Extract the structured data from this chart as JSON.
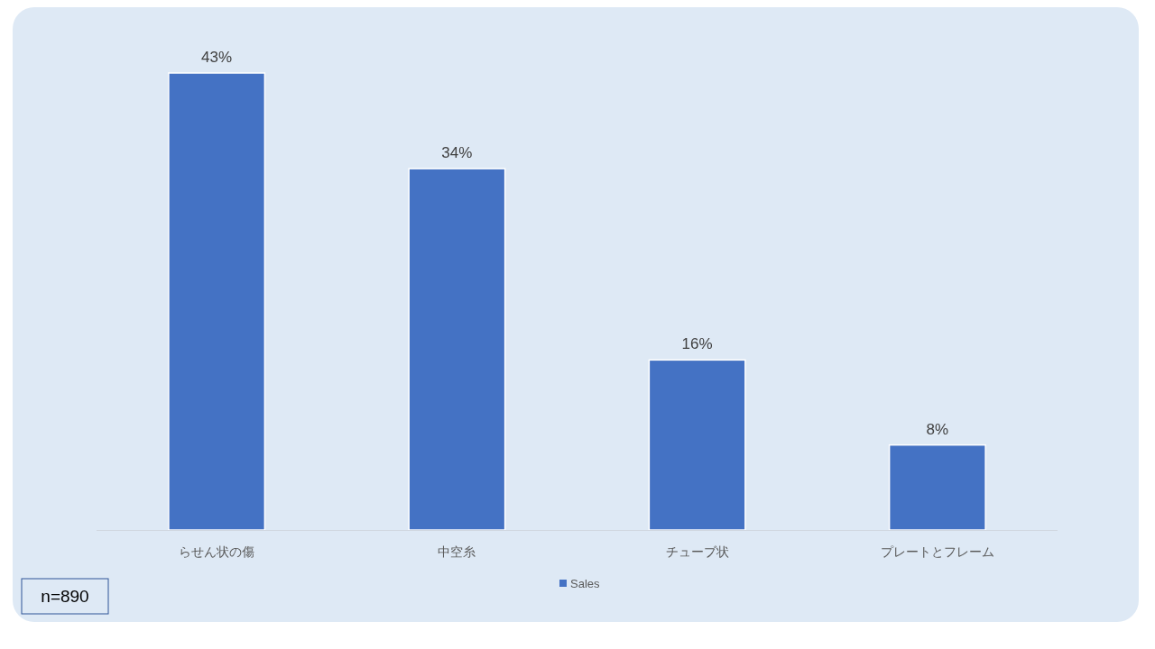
{
  "chart_data": {
    "type": "bar",
    "categories": [
      "らせん状の傷",
      "中空糸",
      "チューブ状",
      "プレートとフレーム"
    ],
    "series": [
      {
        "name": "Sales",
        "color": "#4472c4",
        "values": [
          43,
          34,
          16,
          8
        ],
        "value_labels": [
          "43%",
          "34%",
          "16%",
          "8%"
        ]
      }
    ],
    "legend": "bottom",
    "annotations": [
      "n=890"
    ]
  }
}
